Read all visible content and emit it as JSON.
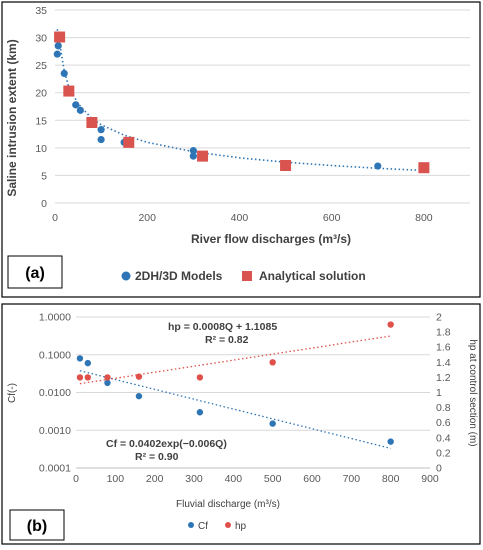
{
  "chart_data": [
    {
      "type": "scatter",
      "panel_label": "(a)",
      "xlabel": "River flow discharges (m³/s)",
      "ylabel": "Saline intrusion extent (km)",
      "xlim": [
        0,
        900
      ],
      "ylim": [
        0,
        35
      ],
      "x_ticks": [
        "0",
        "200",
        "400",
        "600",
        "800"
      ],
      "y_ticks": [
        "0",
        "5",
        "10",
        "15",
        "20",
        "25",
        "30",
        "35"
      ],
      "grid": "horizontal",
      "legend_position": "bottom",
      "series": [
        {
          "name": "2DH/3D Models",
          "marker": "circle",
          "color": "#2E75B6",
          "points": [
            [
              5,
              27
            ],
            [
              7,
              28.5
            ],
            [
              8,
              29.8
            ],
            [
              10,
              30.2
            ],
            [
              20,
              23.5
            ],
            [
              30,
              20.5
            ],
            [
              45,
              17.8
            ],
            [
              55,
              16.8
            ],
            [
              80,
              14.6
            ],
            [
              100,
              11.5
            ],
            [
              100,
              13.3
            ],
            [
              150,
              11
            ],
            [
              300,
              9.5
            ],
            [
              300,
              8.5
            ],
            [
              500,
              6.8
            ],
            [
              700,
              6.7
            ],
            [
              800,
              6.5
            ]
          ]
        },
        {
          "name": "Analytical solution",
          "marker": "square",
          "color": "#D9534F",
          "points": [
            [
              10,
              30.1
            ],
            [
              30,
              20.3
            ],
            [
              80,
              14.6
            ],
            [
              160,
              11
            ],
            [
              320,
              8.5
            ],
            [
              500,
              6.8
            ],
            [
              800,
              6.4
            ]
          ]
        }
      ],
      "trendline": {
        "color": "#2E75B6",
        "style": "dotted",
        "points": [
          [
            5,
            31.5
          ],
          [
            10,
            29
          ],
          [
            20,
            24
          ],
          [
            30,
            21
          ],
          [
            50,
            18
          ],
          [
            80,
            15.3
          ],
          [
            100,
            14.2
          ],
          [
            150,
            12.3
          ],
          [
            200,
            11
          ],
          [
            300,
            9.3
          ],
          [
            400,
            8.2
          ],
          [
            500,
            7.4
          ],
          [
            600,
            6.8
          ],
          [
            700,
            6.3
          ],
          [
            800,
            5.9
          ]
        ]
      }
    },
    {
      "type": "scatter",
      "panel_label": "(b)",
      "xlabel": "Fluvial discharge (m³/s)",
      "ylabel_left": "Cf(-)",
      "ylabel_right": "hp at control section (m)",
      "xlim": [
        0,
        900
      ],
      "y_left_scale": "log",
      "y_left_lim": [
        0.0001,
        1
      ],
      "y_right_lim": [
        0,
        2
      ],
      "x_ticks": [
        "0",
        "100",
        "200",
        "300",
        "400",
        "500",
        "600",
        "700",
        "800",
        "900"
      ],
      "y_left_ticks": [
        "0.0001",
        "0.0010",
        "0.0100",
        "0.1000",
        "1.0000"
      ],
      "y_right_ticks": [
        "0",
        "0.2",
        "0.4",
        "0.6",
        "0.8",
        "1",
        "1.2",
        "1.4",
        "1.6",
        "1.8",
        "2"
      ],
      "grid": "horizontal",
      "legend_position": "bottom",
      "series": [
        {
          "name": "Cf",
          "axis": "left",
          "color": "#2E75B6",
          "points": [
            [
              10,
              0.08
            ],
            [
              30,
              0.06
            ],
            [
              80,
              0.018
            ],
            [
              160,
              0.008
            ],
            [
              315,
              0.003
            ],
            [
              500,
              0.0015
            ],
            [
              800,
              0.0005
            ]
          ]
        },
        {
          "name": "hp",
          "axis": "right",
          "color": "#E0504A",
          "points": [
            [
              10,
              1.2
            ],
            [
              30,
              1.2
            ],
            [
              80,
              1.2
            ],
            [
              160,
              1.21
            ],
            [
              315,
              1.2
            ],
            [
              500,
              1.4
            ],
            [
              800,
              1.9
            ]
          ]
        }
      ],
      "trendlines": [
        {
          "series": "Cf",
          "color": "#2E75B6",
          "style": "dotted",
          "equation": "Cf = 0.0402exp(−0.006Q)",
          "r2": "R² = 0.90",
          "a": 0.0402,
          "b": -0.006
        },
        {
          "series": "hp",
          "color": "#E0504A",
          "style": "dotted",
          "equation": "hp = 0.0008Q + 1.1085",
          "r2": "R² = 0.82",
          "m": 0.0008,
          "c": 1.1085
        }
      ]
    }
  ]
}
